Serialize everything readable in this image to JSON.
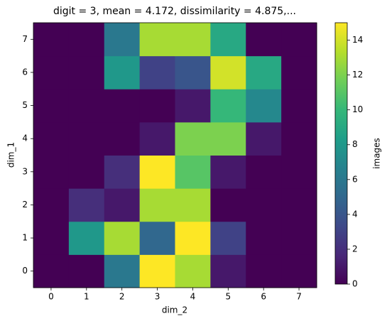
{
  "chart_data": {
    "type": "heatmap",
    "title": "digit = 3, mean = 4.172, dissimilarity = 4.875,...",
    "x_label": "dim_2",
    "y_label": "dim_1",
    "x": [
      0,
      1,
      2,
      3,
      4,
      5,
      6,
      7
    ],
    "y": [
      0,
      1,
      2,
      3,
      4,
      5,
      6,
      7
    ],
    "z": [
      [
        0,
        0,
        6,
        15,
        13,
        1,
        0,
        0
      ],
      [
        0,
        8,
        13,
        5,
        15,
        3,
        0,
        0
      ],
      [
        0,
        2,
        1,
        13,
        13,
        0,
        0,
        0
      ],
      [
        0,
        0,
        2,
        15,
        11,
        1,
        0,
        0
      ],
      [
        0,
        0,
        0,
        1,
        12,
        12,
        1,
        0
      ],
      [
        0,
        0,
        0,
        0,
        1,
        10,
        7,
        0
      ],
      [
        0,
        0,
        8,
        3,
        4,
        14,
        9,
        0
      ],
      [
        0,
        0,
        6,
        13,
        13,
        9,
        0,
        0
      ]
    ],
    "xlim": [
      -0.5,
      7.5
    ],
    "ylim": [
      -0.5,
      7.5
    ],
    "xticks": [
      0,
      1,
      2,
      3,
      4,
      5,
      6,
      7
    ],
    "yticks": [
      0,
      1,
      2,
      3,
      4,
      5,
      6,
      7
    ],
    "colormap": "viridis",
    "colorbar_label": "images",
    "clim": [
      0,
      15
    ],
    "cticks": [
      0,
      2,
      4,
      6,
      8,
      10,
      12,
      14
    ]
  }
}
